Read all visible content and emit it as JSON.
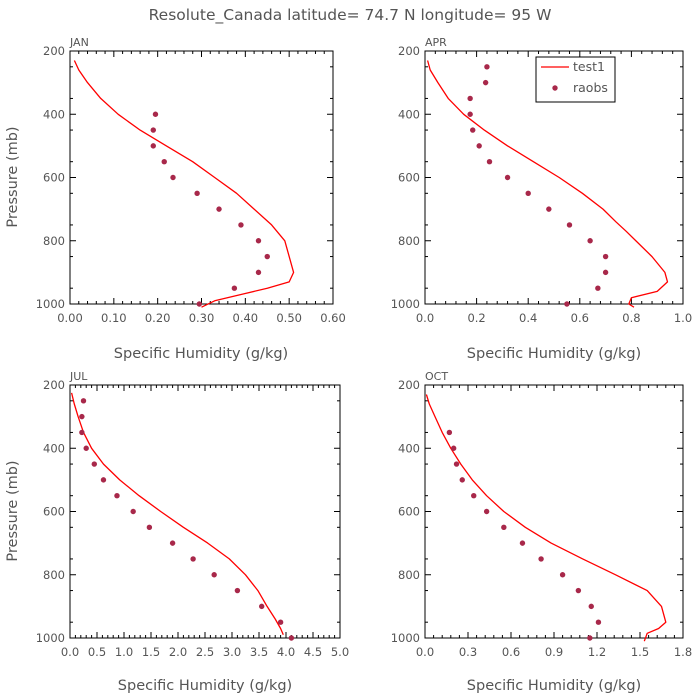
{
  "page_title": "Resolute_Canada  latitude= 74.7 N longitude= 95 W",
  "colors": {
    "model": "#ff0000",
    "obs": "#a8284a",
    "axis": "#000000",
    "text": "#555555"
  },
  "chart_data": [
    {
      "type": "line",
      "title": "JAN",
      "xlabel": "Specific Humidity (g/kg)",
      "ylabel": "Pressure (mb)",
      "xlim": [
        0,
        0.6
      ],
      "ylim": [
        1000,
        200
      ],
      "xticks": [
        "0.00",
        "0.10",
        "0.20",
        "0.30",
        "0.40",
        "0.50",
        "0.60"
      ],
      "yticks": [
        "200",
        "400",
        "600",
        "800",
        "1000"
      ],
      "legend": null,
      "series": [
        {
          "name": "test1",
          "type": "line",
          "x": [
            0.01,
            0.02,
            0.04,
            0.07,
            0.11,
            0.16,
            0.22,
            0.28,
            0.33,
            0.38,
            0.42,
            0.46,
            0.49,
            0.51,
            0.5,
            0.45,
            0.39,
            0.33,
            0.3
          ],
          "y": [
            230,
            260,
            300,
            350,
            400,
            450,
            500,
            550,
            600,
            650,
            700,
            750,
            800,
            900,
            930,
            950,
            970,
            990,
            1010
          ]
        },
        {
          "name": "raobs",
          "type": "scatter",
          "x": [
            0.195,
            0.19,
            0.19,
            0.215,
            0.235,
            0.29,
            0.34,
            0.39,
            0.43,
            0.45,
            0.43,
            0.375,
            0.295
          ],
          "y": [
            400,
            450,
            500,
            550,
            600,
            650,
            700,
            750,
            800,
            850,
            900,
            950,
            1000
          ]
        }
      ]
    },
    {
      "type": "line",
      "title": "APR",
      "xlabel": "Specific Humidity (g/kg)",
      "ylabel": "",
      "xlim": [
        0,
        1.0
      ],
      "ylim": [
        1000,
        200
      ],
      "xticks": [
        "0.0",
        "0.2",
        "0.4",
        "0.6",
        "0.8",
        "1.0"
      ],
      "yticks": [
        "200",
        "400",
        "600",
        "800",
        "1000"
      ],
      "legend": {
        "position": "top-right",
        "entries": [
          "test1",
          "raobs"
        ]
      },
      "series": [
        {
          "name": "test1",
          "type": "line",
          "x": [
            0.01,
            0.02,
            0.05,
            0.09,
            0.15,
            0.23,
            0.32,
            0.42,
            0.52,
            0.61,
            0.69,
            0.74,
            0.78,
            0.88,
            0.93,
            0.94,
            0.9,
            0.8,
            0.79,
            0.81
          ],
          "y": [
            230,
            260,
            300,
            350,
            400,
            450,
            500,
            550,
            600,
            650,
            700,
            740,
            770,
            850,
            900,
            930,
            960,
            980,
            1000,
            1010
          ]
        },
        {
          "name": "raobs",
          "type": "scatter",
          "x": [
            0.24,
            0.235,
            0.175,
            0.175,
            0.185,
            0.21,
            0.25,
            0.32,
            0.4,
            0.48,
            0.56,
            0.64,
            0.7,
            0.7,
            0.67,
            0.55
          ],
          "y": [
            250,
            300,
            350,
            400,
            450,
            500,
            550,
            600,
            650,
            700,
            750,
            800,
            850,
            900,
            950,
            1000
          ]
        }
      ]
    },
    {
      "type": "line",
      "title": "JUL",
      "xlabel": "Specific Humidity (g/kg)",
      "ylabel": "Pressure (mb)",
      "xlim": [
        0,
        5.0
      ],
      "ylim": [
        1000,
        200
      ],
      "xticks": [
        "0.0",
        "0.5",
        "1.0",
        "1.5",
        "2.0",
        "2.5",
        "3.0",
        "3.5",
        "4.0",
        "4.5",
        "5.0"
      ],
      "yticks": [
        "200",
        "400",
        "600",
        "800",
        "1000"
      ],
      "legend": null,
      "series": [
        {
          "name": "test1",
          "type": "line",
          "x": [
            0.03,
            0.08,
            0.15,
            0.25,
            0.4,
            0.62,
            0.92,
            1.28,
            1.68,
            2.1,
            2.55,
            2.95,
            3.25,
            3.48,
            3.65,
            3.8,
            3.9,
            3.95
          ],
          "y": [
            225,
            260,
            300,
            350,
            400,
            450,
            500,
            550,
            600,
            650,
            700,
            750,
            800,
            850,
            900,
            940,
            970,
            990
          ]
        },
        {
          "name": "raobs",
          "type": "scatter",
          "x": [
            0.25,
            0.22,
            0.22,
            0.3,
            0.45,
            0.62,
            0.87,
            1.17,
            1.47,
            1.9,
            2.28,
            2.67,
            3.1,
            3.55,
            3.9,
            4.1
          ],
          "y": [
            250,
            300,
            350,
            400,
            450,
            500,
            550,
            600,
            650,
            700,
            750,
            800,
            850,
            900,
            950,
            1000
          ]
        }
      ]
    },
    {
      "type": "line",
      "title": "OCT",
      "xlabel": "Specific Humidity (g/kg)",
      "ylabel": "",
      "xlim": [
        0,
        1.8
      ],
      "ylim": [
        1000,
        200
      ],
      "xticks": [
        "0.0",
        "0.3",
        "0.6",
        "0.9",
        "1.2",
        "1.5",
        "1.8"
      ],
      "yticks": [
        "200",
        "400",
        "600",
        "800",
        "1000"
      ],
      "legend": null,
      "series": [
        {
          "name": "test1",
          "type": "line",
          "x": [
            0.01,
            0.03,
            0.07,
            0.12,
            0.18,
            0.25,
            0.33,
            0.43,
            0.55,
            0.7,
            0.88,
            1.1,
            1.33,
            1.55,
            1.65,
            1.68,
            1.63,
            1.55,
            1.53
          ],
          "y": [
            230,
            260,
            300,
            350,
            400,
            450,
            500,
            550,
            600,
            650,
            700,
            750,
            800,
            850,
            900,
            950,
            970,
            985,
            1010
          ]
        },
        {
          "name": "raobs",
          "type": "scatter",
          "x": [
            0.17,
            0.2,
            0.22,
            0.26,
            0.34,
            0.43,
            0.55,
            0.68,
            0.81,
            0.96,
            1.07,
            1.16,
            1.21,
            1.15
          ],
          "y": [
            350,
            400,
            450,
            500,
            550,
            600,
            650,
            700,
            750,
            800,
            850,
            900,
            950,
            1000
          ]
        }
      ]
    }
  ]
}
